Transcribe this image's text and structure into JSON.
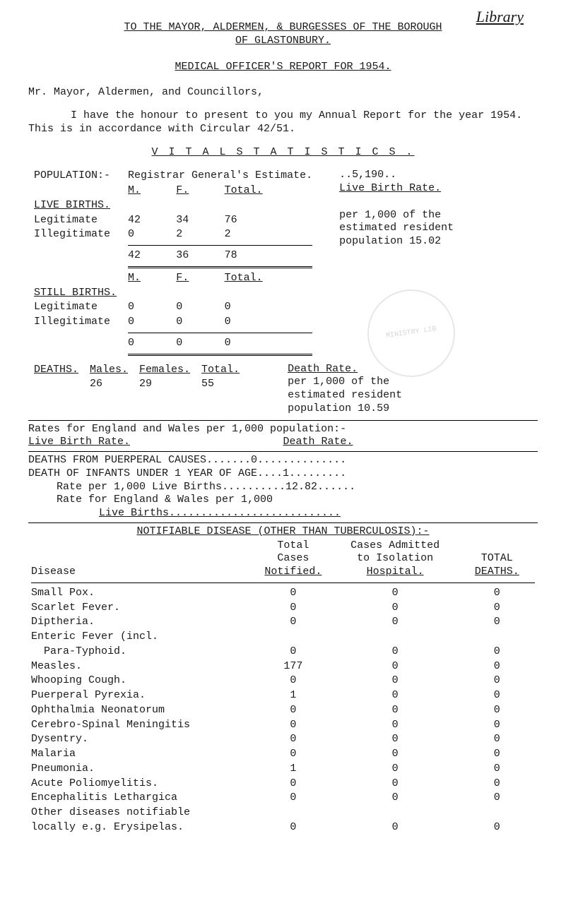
{
  "handwritten": "Library",
  "title_line": "TO  THE  MAYOR,  ALDERMEN,  &  BURGESSES  OF  THE  BOROUGH",
  "title_sub": "OF  GLASTONBURY.",
  "subheader": "MEDICAL  OFFICER'S  REPORT  FOR  1954.",
  "addressee": "Mr. Mayor, Aldermen, and Councillors,",
  "para1": "I have the honour to present to you my Annual Report for the year 1954.    This is in accordance with Circular 42/51.",
  "vital_header": "V I T A L   S T A T I S T I C S .",
  "pop_label": "POPULATION:-",
  "reg_label": "Registrar General's Estimate.",
  "m_label": "M.",
  "f_label": "F.",
  "total_label": "Total.",
  "live_births_label": "LIVE BIRTHS.",
  "legit_label": "Legitimate",
  "illegit_label": "Illegitimate",
  "still_births_label": "STILL BIRTHS.",
  "deaths_label": "DEATHS.",
  "males_label": "Males.",
  "females_label": "Females.",
  "live_births": {
    "legit": {
      "m": "42",
      "f": "34",
      "t": "76"
    },
    "illegit": {
      "m": "0",
      "f": "2",
      "t": "2"
    },
    "total": {
      "m": "42",
      "f": "36",
      "t": "78"
    }
  },
  "still_births": {
    "legit": {
      "m": "0",
      "f": "0",
      "t": "0"
    },
    "illegit": {
      "m": "0",
      "f": "0",
      "t": "0"
    },
    "total": {
      "m": "0",
      "f": "0",
      "t": "0"
    }
  },
  "deaths_row": {
    "m": "26",
    "f": "29",
    "t": "55"
  },
  "side_note_1a": "..5,190..",
  "side_note_1b": "Live Birth Rate.",
  "side_note_2a": "per 1,000 of the",
  "side_note_2b": "estimated resident",
  "side_note_2c": "population 15.02",
  "death_rate_label": "Death Rate.",
  "side_note_3a": "per 1,000 of the",
  "side_note_3b": "estimated resident",
  "side_note_3c": "population  10.59",
  "rates_line1a": "Rates for England and Wales per 1,000 population:-",
  "rates_line1b": "Live Birth Rate.",
  "rates_line1c": "Death Rate.",
  "rates_line2": "DEATHS FROM PUERPERAL CAUSES.......0..............",
  "rates_line3": "DEATH OF INFANTS UNDER 1 YEAR OF AGE....1.........",
  "rates_line4": "Rate per 1,000 Live Births..........12.82......",
  "rates_line5": "Rate for England & Wales per 1,000",
  "rates_line6": "Live Births...........................",
  "notifiable_header": "NOTIFIABLE DISEASE (OTHER THAN TUBERCULOSIS):-",
  "disease_col0": "Disease",
  "disease_col1a": "Total",
  "disease_col1b": "Cases",
  "disease_col1c": "Notified.",
  "disease_col2a": "Cases Admitted",
  "disease_col2b": "to Isolation",
  "disease_col2c": "Hospital.",
  "disease_col3a": "TOTAL",
  "disease_col3b": "DEATHS.",
  "diseases": [
    {
      "name": "Small Pox.",
      "n": "0",
      "h": "0",
      "d": "0"
    },
    {
      "name": "Scarlet Fever.",
      "n": "0",
      "h": "0",
      "d": "0"
    },
    {
      "name": "Diptheria.",
      "n": "0",
      "h": "0",
      "d": "0"
    },
    {
      "name": "Enteric Fever (incl.",
      "n": "",
      "h": "",
      "d": ""
    },
    {
      "name": "  Para-Typhoid.",
      "n": "0",
      "h": "0",
      "d": "0"
    },
    {
      "name": "Measles.",
      "n": "177",
      "h": "0",
      "d": "0"
    },
    {
      "name": "Whooping Cough.",
      "n": "0",
      "h": "0",
      "d": "0"
    },
    {
      "name": "Puerperal Pyrexia.",
      "n": "1",
      "h": "0",
      "d": "0"
    },
    {
      "name": "Ophthalmia Neonatorum",
      "n": "0",
      "h": "0",
      "d": "0"
    },
    {
      "name": "Cerebro-Spinal Meningitis",
      "n": "0",
      "h": "0",
      "d": "0"
    },
    {
      "name": "Dysentry.",
      "n": "0",
      "h": "0",
      "d": "0"
    },
    {
      "name": "Malaria",
      "n": "0",
      "h": "0",
      "d": "0"
    },
    {
      "name": "Pneumonia.",
      "n": "1",
      "h": "0",
      "d": "0"
    },
    {
      "name": "Acute Poliomyelitis.",
      "n": "0",
      "h": "0",
      "d": "0"
    },
    {
      "name": "Encephalitis Lethargica",
      "n": "0",
      "h": "0",
      "d": "0"
    },
    {
      "name": "Other diseases notifiable",
      "n": "",
      "h": "",
      "d": ""
    },
    {
      "name": "locally e.g. Erysipelas.",
      "n": "0",
      "h": "0",
      "d": "0"
    }
  ],
  "stamp_text": "MINISTRY LIB"
}
